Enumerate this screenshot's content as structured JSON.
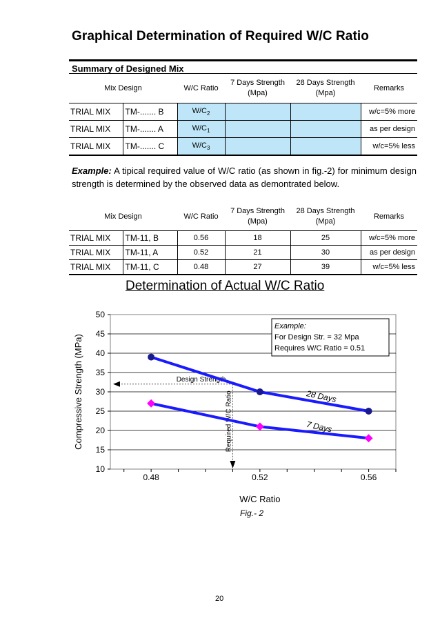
{
  "page_title": "Graphical Determination of Required W/C Ratio",
  "section_heading": "Summary of Designed Mix",
  "columns": {
    "mix_design": "Mix Design",
    "wc_ratio": "W/C Ratio",
    "strength7": [
      "7 Days Strength",
      "(Mpa)"
    ],
    "strength28": [
      "28 Days Strength",
      "(Mpa)"
    ],
    "remarks": "Remarks"
  },
  "table1": {
    "rows": [
      {
        "label": "TRIAL MIX",
        "id": "TM-....... B",
        "wc_base": "W/C",
        "wc_sub": "2",
        "s7": "",
        "s28": "",
        "remarks": "w/c=5% more"
      },
      {
        "label": "TRIAL MIX",
        "id": "TM-....... A",
        "wc_base": "W/C",
        "wc_sub": "1",
        "s7": "",
        "s28": "",
        "remarks": "as per design"
      },
      {
        "label": "TRIAL MIX",
        "id": "TM-....... C",
        "wc_base": "W/C",
        "wc_sub": "3",
        "s7": "",
        "s28": "",
        "remarks": "w/c=5% less"
      }
    ]
  },
  "example_paragraph": {
    "lead": "Example:",
    "text": " A tipical required value of W/C ratio (as shown in fig.-2) for minimum design strength is determined by the observed data as demontrated below."
  },
  "table2": {
    "rows": [
      {
        "label": "TRIAL MIX",
        "id": "TM-11, B",
        "wc": "0.56",
        "s7": "18",
        "s28": "25",
        "remarks": "w/c=5% more"
      },
      {
        "label": "TRIAL MIX",
        "id": "TM-11, A",
        "wc": "0.52",
        "s7": "21",
        "s28": "30",
        "remarks": "as per design"
      },
      {
        "label": "TRIAL MIX",
        "id": "TM-11, C",
        "wc": "0.48",
        "s7": "27",
        "s28": "39",
        "remarks": "w/c=5% less"
      }
    ]
  },
  "chart_data": {
    "type": "line",
    "title": "Determination of Actual W/C Ratio",
    "xlabel": "W/C Ratio",
    "ylabel": "Compressive Strength (MPa)",
    "x": [
      0.48,
      0.52,
      0.56
    ],
    "x_ticks": [
      "0.48",
      "0.52",
      "0.56"
    ],
    "xlim": [
      0.465,
      0.57
    ],
    "ylim": [
      10,
      50
    ],
    "y_ticks": [
      10,
      15,
      20,
      25,
      30,
      35,
      40,
      45,
      50
    ],
    "grid": true,
    "series": [
      {
        "name": "28 Days",
        "values": [
          39,
          30,
          25
        ],
        "color": "#1a1aff",
        "marker": "circle",
        "marker_color": "#1a1a8c"
      },
      {
        "name": "7 Days",
        "values": [
          27,
          21,
          18
        ],
        "color": "#1a1aff",
        "marker": "diamond",
        "marker_color": "#ff00ff"
      }
    ],
    "annotations": {
      "example_box": [
        "Example:",
        "For Design Str. = 32 Mpa",
        "Requires W/C Ratio = 0.51"
      ],
      "design_strength_label": "Design Strength",
      "design_strength_value": 32,
      "required_wc_label": "Required W/C Ratio",
      "required_wc_value": 0.51
    }
  },
  "figure_caption": "Fig.- 2",
  "page_number": "20"
}
